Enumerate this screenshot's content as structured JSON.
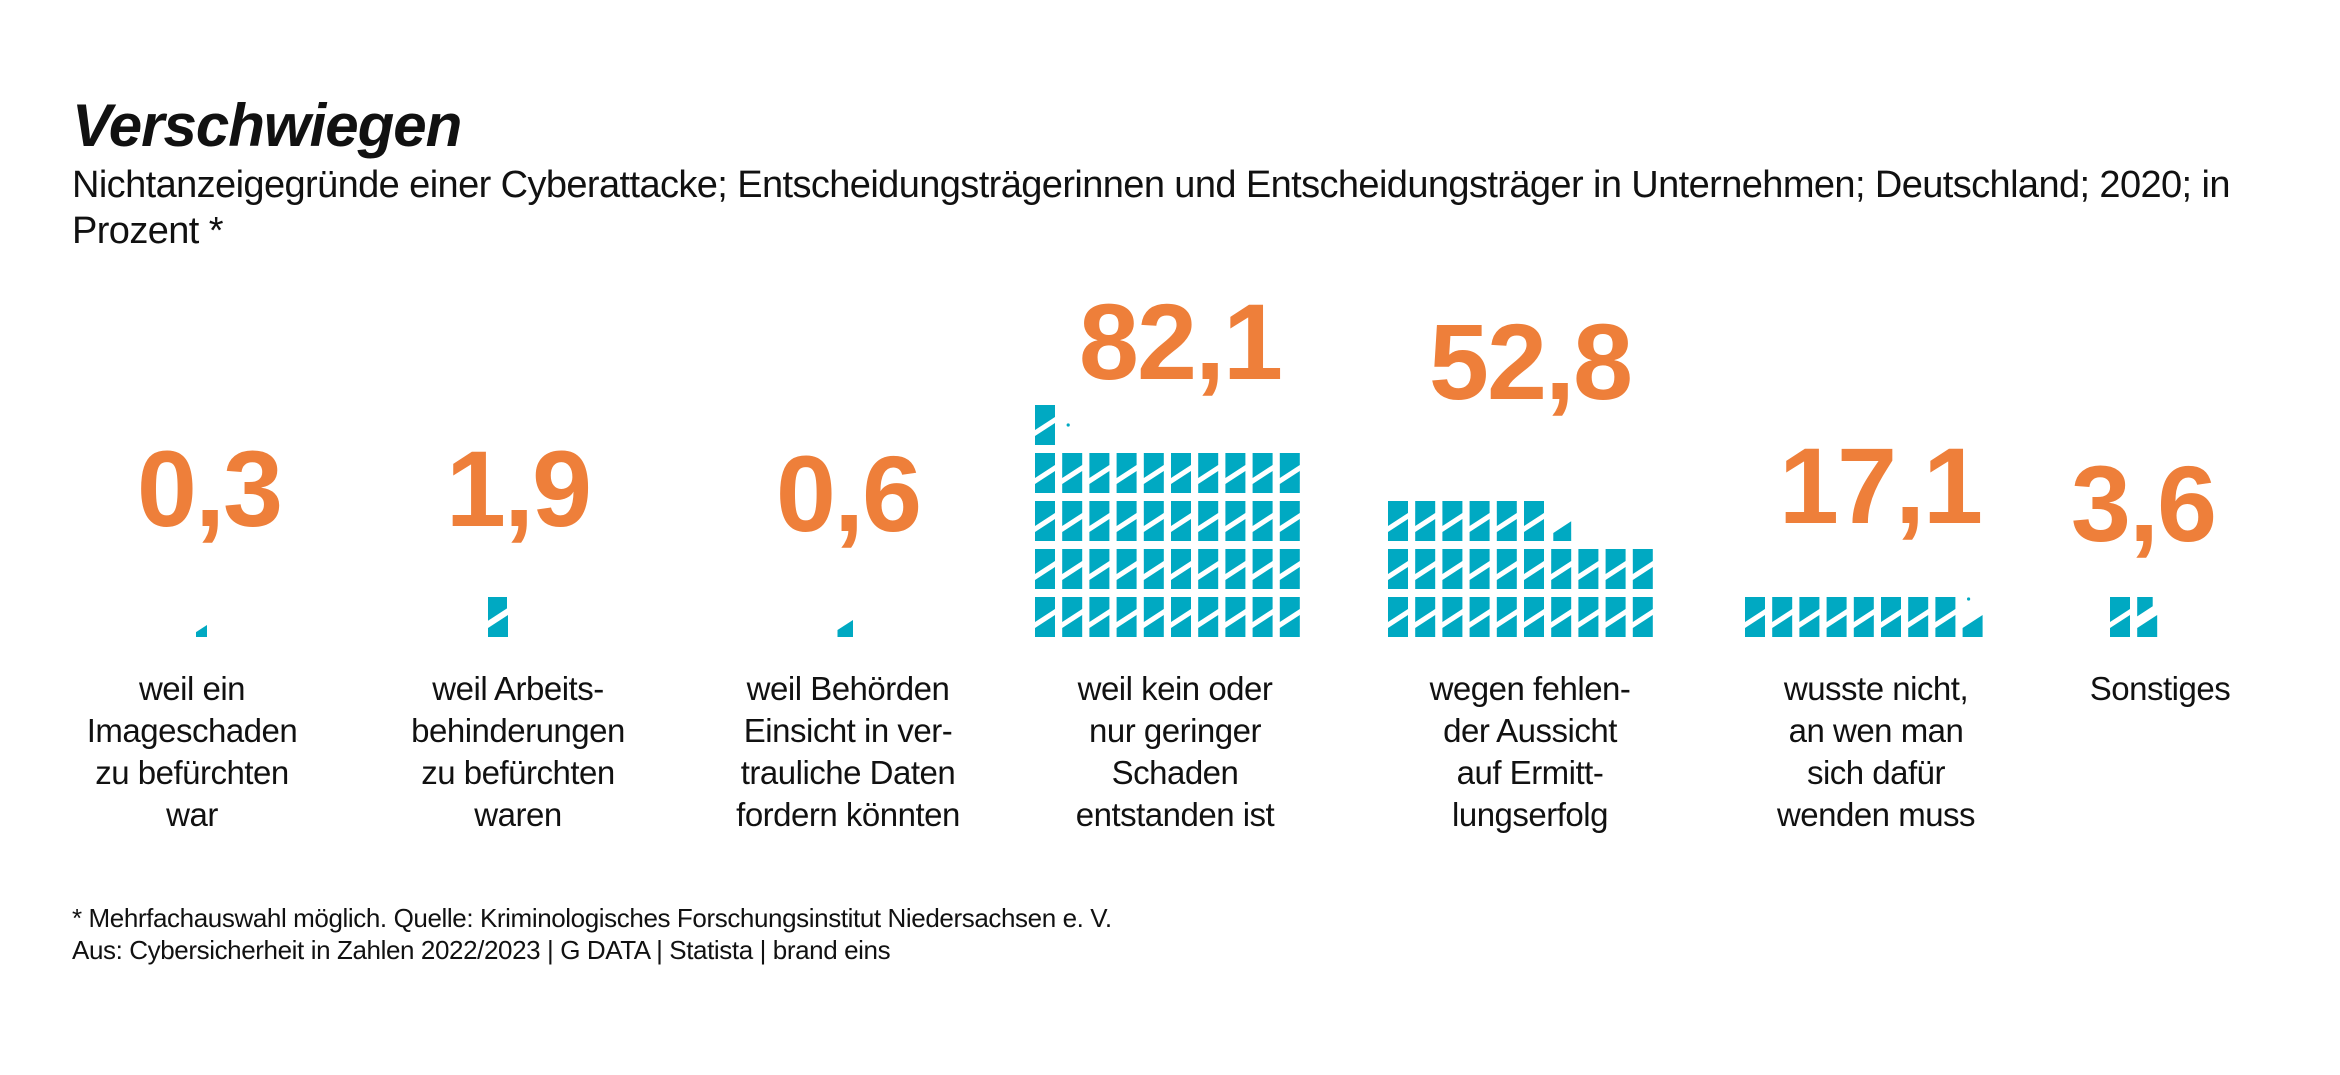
{
  "header": {
    "title": "Verschwiegen",
    "subtitle": "Nichtanzeigegründe einer Cyberattacke; Entscheidungsträgerinnen und Entscheidungsträger in Unternehmen; Deutschland; 2020; in Prozent *"
  },
  "colors": {
    "value": "#EE7F3A",
    "icon": "#00A9C2",
    "text": "#111111"
  },
  "chart_data": {
    "type": "bar",
    "style": "pictogram (each half-tile = 1 %)",
    "title": "Verschwiegen",
    "subtitle": "Nichtanzeigegründe einer Cyberattacke; Entscheidungsträgerinnen und Entscheidungsträger in Unternehmen; Deutschland; 2020; in Prozent *",
    "unit": "%",
    "categories": [
      "weil ein Imageschaden zu befürchten war",
      "weil Arbeitsbehinderungen zu befürchten waren",
      "weil Behörden Einsicht in vertrauliche Daten fordern könnten",
      "weil kein oder nur geringer Schaden entstanden ist",
      "wegen fehlender Aussicht auf Ermittlungserfolg",
      "wusste nicht, an wen man sich dafür wenden muss",
      "Sonstiges"
    ],
    "values": [
      0.3,
      1.9,
      0.6,
      82.1,
      52.8,
      17.1,
      3.6
    ],
    "value_labels": [
      "0,3",
      "1,9",
      "0,6",
      "82,1",
      "52,8",
      "17,1",
      "3,6"
    ],
    "category_lines": [
      [
        "weil ein",
        "Imageschaden",
        "zu befürchten",
        "war"
      ],
      [
        "weil Arbeits-",
        "behinderungen",
        "zu befürchten",
        "waren"
      ],
      [
        "weil Behörden",
        "Einsicht in ver-",
        "trauliche Daten",
        "fordern könnten"
      ],
      [
        "weil kein oder",
        "nur geringer",
        "Schaden",
        "entstanden ist"
      ],
      [
        "wegen fehlen-",
        "der Aussicht",
        "auf Ermitt-",
        "lungserfolg"
      ],
      [
        "wusste nicht,",
        "an wen man",
        "sich dafür",
        "wenden muss"
      ],
      [
        "Sonstiges"
      ]
    ],
    "xlabel": "",
    "ylabel": "",
    "ylim": [
      0,
      100
    ],
    "grid": false,
    "legend": "none"
  },
  "footer": {
    "note": "* Mehrfachauswahl möglich. Quelle: Kriminologisches Forschungsinstitut Niedersachsen e. V.",
    "source": "Aus: Cybersicherheit in Zahlen 2022/2023 | G DATA | Statista | brand eins"
  }
}
